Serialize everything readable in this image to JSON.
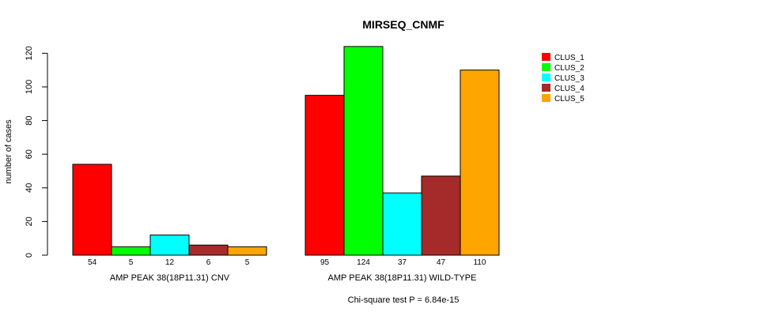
{
  "chart_data": {
    "type": "bar",
    "title": "MIRSEQ_CNMF",
    "ylabel": "number of cases",
    "ylim": [
      0,
      125
    ],
    "yticks": [
      0,
      20,
      40,
      60,
      80,
      100,
      120
    ],
    "groups": [
      "AMP PEAK 38(18P11.31) CNV",
      "AMP PEAK 38(18P11.31) WILD-TYPE"
    ],
    "series": [
      {
        "name": "CLUS_1",
        "color": "#ff0000",
        "values": [
          54,
          95
        ]
      },
      {
        "name": "CLUS_2",
        "color": "#00ff00",
        "values": [
          5,
          124
        ]
      },
      {
        "name": "CLUS_3",
        "color": "#00ffff",
        "values": [
          12,
          37
        ]
      },
      {
        "name": "CLUS_4",
        "color": "#a52a2a",
        "values": [
          6,
          47
        ]
      },
      {
        "name": "CLUS_5",
        "color": "#ffa500",
        "values": [
          5,
          110
        ]
      }
    ],
    "legend_position": "top-right",
    "grid": false,
    "footnote": "Chi-square test P = 6.84e-15"
  }
}
